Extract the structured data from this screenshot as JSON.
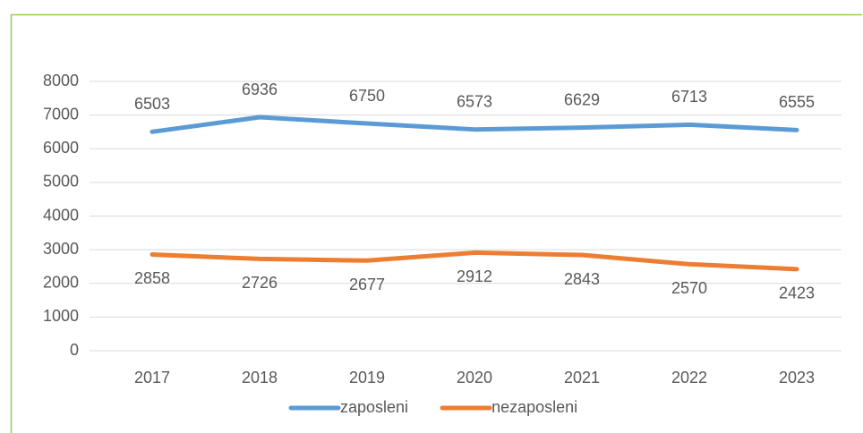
{
  "chart_data": {
    "type": "line",
    "categories": [
      "2017",
      "2018",
      "2019",
      "2020",
      "2021",
      "2022",
      "2023"
    ],
    "series": [
      {
        "name": "zaposleni",
        "color": "#5b9bd5",
        "values": [
          6503,
          6936,
          6750,
          6573,
          6629,
          6713,
          6555
        ]
      },
      {
        "name": "nezaposleni",
        "color": "#ed7d31",
        "values": [
          2858,
          2726,
          2677,
          2912,
          2843,
          2570,
          2423
        ]
      }
    ],
    "ylim": [
      0,
      8000
    ],
    "yticks": [
      0,
      1000,
      2000,
      3000,
      4000,
      5000,
      6000,
      7000,
      8000
    ],
    "grid": true,
    "legend": "bottom",
    "data_labels": true
  }
}
